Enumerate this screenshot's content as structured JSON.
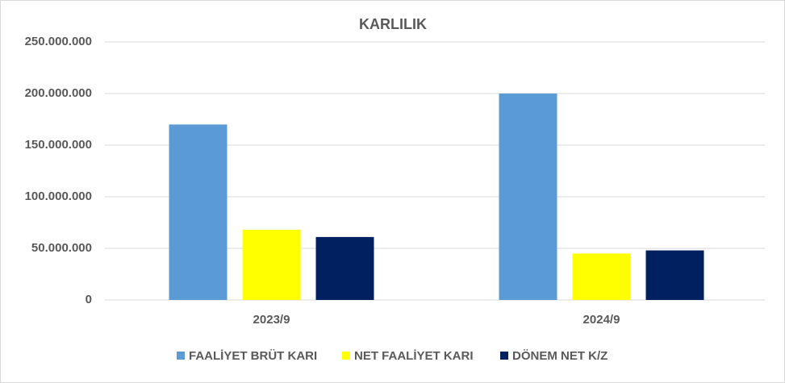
{
  "chart_data": {
    "type": "bar",
    "title": "KARLILIK",
    "categories": [
      "2023/9",
      "2024/9"
    ],
    "series": [
      {
        "name": "FAALİYET BRÜT KARI",
        "color": "#5b9bd5",
        "values": [
          170000000,
          200000000
        ]
      },
      {
        "name": "NET FAALİYET KARI",
        "color": "#ffff00",
        "values": [
          68000000,
          45000000
        ]
      },
      {
        "name": "DÖNEM NET K/Z",
        "color": "#002060",
        "values": [
          61000000,
          48000000
        ]
      }
    ],
    "ylim": [
      0,
      250000000
    ],
    "yticks": [
      0,
      {
        "value": 50000000,
        "label": "50.000.000"
      },
      {
        "value": 100000000,
        "label": "100.000.000"
      },
      {
        "value": 150000000,
        "label": "150.000.000"
      },
      {
        "value": 200000000,
        "label": "200.000.000"
      },
      {
        "value": 250000000,
        "label": "250.000.000"
      }
    ],
    "grid": true,
    "legend": "bottom"
  }
}
